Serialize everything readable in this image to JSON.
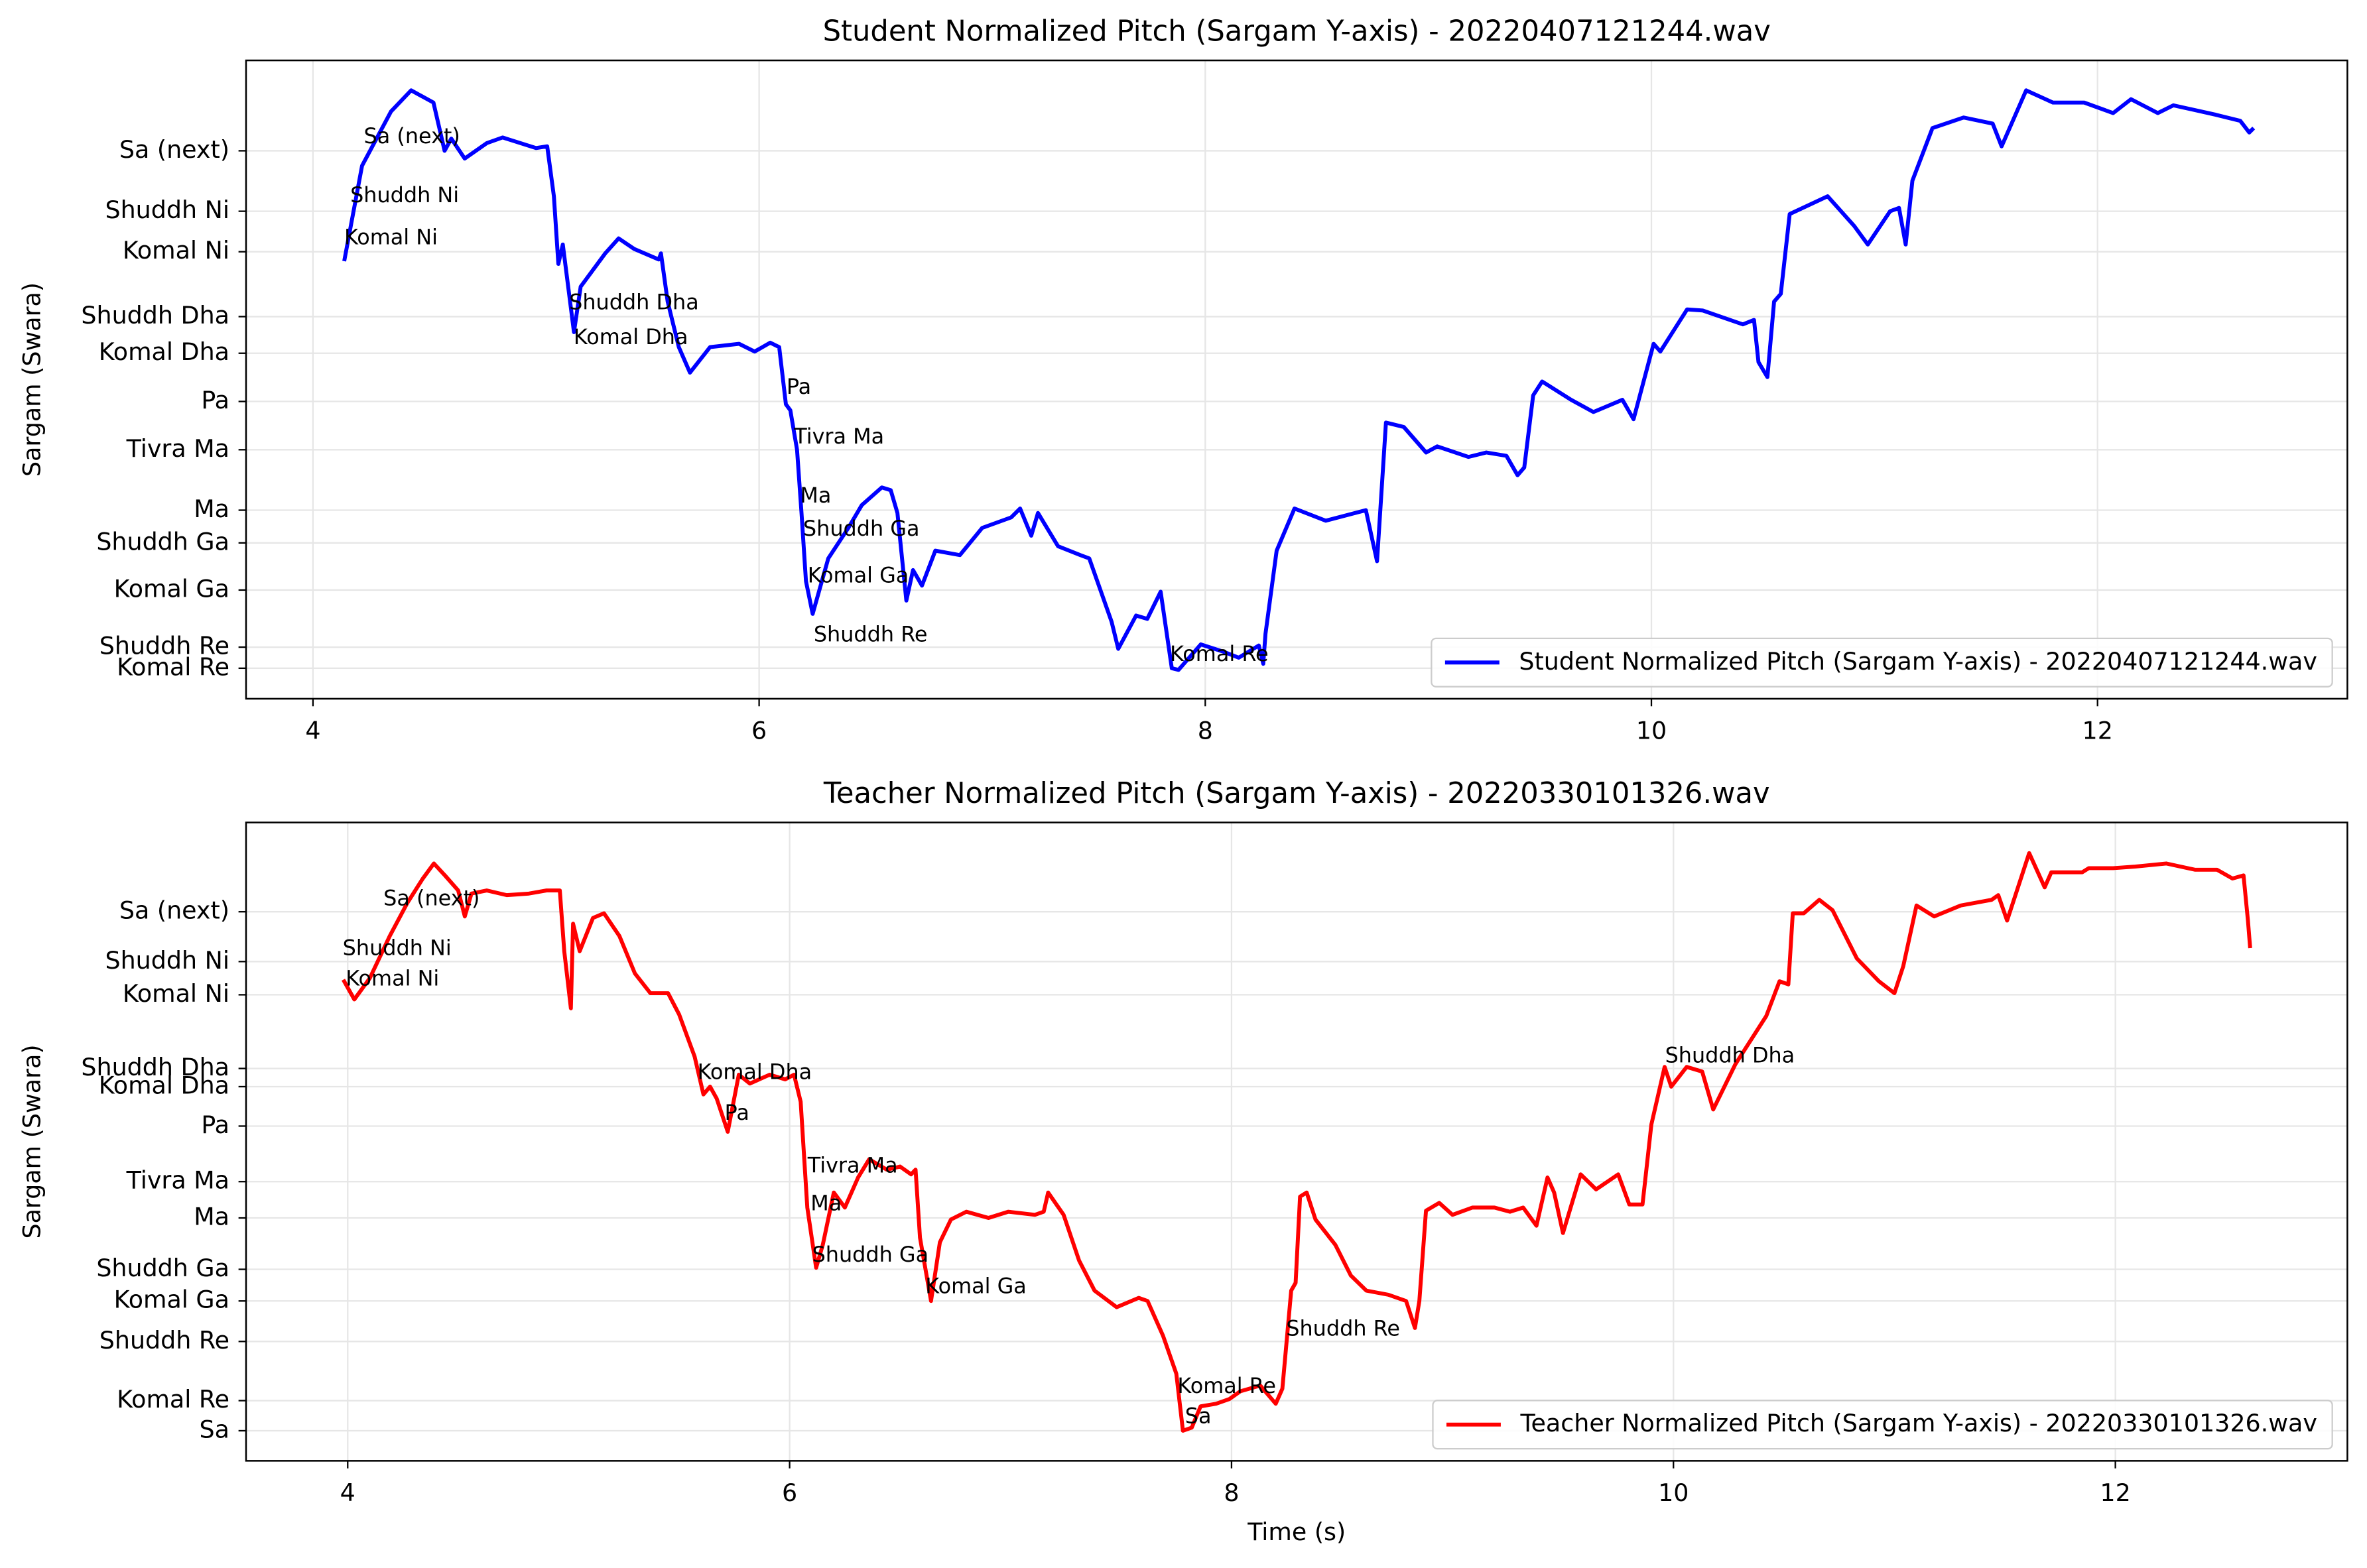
{
  "chart_data": [
    {
      "type": "line",
      "title": "Student Normalized Pitch (Sargam Y-axis) - 20220407121244.wav",
      "ylabel": "Sargam (Swara)",
      "xlim": [
        3.7,
        13.12
      ],
      "xticks": [
        4,
        6,
        8,
        10,
        12
      ],
      "ylim": [
        1.012,
        2.163
      ],
      "yticks": [
        {
          "value": 1.067,
          "label": "Komal Re"
        },
        {
          "value": 1.105,
          "label": "Shuddh Re"
        },
        {
          "value": 1.208,
          "label": "Komal Ga"
        },
        {
          "value": 1.293,
          "label": "Shuddh Ga"
        },
        {
          "value": 1.352,
          "label": "Ma"
        },
        {
          "value": 1.461,
          "label": "Tivra Ma"
        },
        {
          "value": 1.548,
          "label": "Pa"
        },
        {
          "value": 1.635,
          "label": "Komal Dha"
        },
        {
          "value": 1.701,
          "label": "Shuddh Dha"
        },
        {
          "value": 1.818,
          "label": "Komal Ni"
        },
        {
          "value": 1.891,
          "label": "Shuddh Ni"
        },
        {
          "value": 2.0,
          "label": "Sa (next)"
        }
      ],
      "grid": true,
      "legend": "lower right",
      "annotations": [
        "Sa (next)",
        "Shuddh Ni",
        "Komal Ni",
        "Shuddh Dha",
        "Komal Dha",
        "Pa",
        "Tivra Ma",
        "Ma",
        "Shuddh Ga",
        "Komal Ga",
        "Shuddh Re",
        "Komal Re"
      ],
      "x": [
        4.14,
        4.22,
        4.35,
        4.44,
        4.54,
        4.59,
        4.62,
        4.68,
        4.78,
        4.85,
        5.0,
        5.05,
        5.08,
        5.1,
        5.12,
        5.17,
        5.2,
        5.31,
        5.37,
        5.44,
        5.55,
        5.56,
        5.59,
        5.64,
        5.69,
        5.78,
        5.91,
        5.98,
        6.05,
        6.09,
        6.12,
        6.14,
        6.17,
        6.19,
        6.21,
        6.24,
        6.31,
        6.4,
        6.46,
        6.55,
        6.59,
        6.62,
        6.66,
        6.69,
        6.73,
        6.79,
        6.9,
        7.0,
        7.13,
        7.17,
        7.22,
        7.25,
        7.34,
        7.44,
        7.48,
        7.58,
        7.61,
        7.69,
        7.74,
        7.8,
        7.85,
        7.88,
        7.98,
        8.08,
        8.15,
        8.24,
        8.26,
        8.27,
        8.32,
        8.4,
        8.54,
        8.72,
        8.77,
        8.81,
        8.89,
        8.99,
        9.04,
        9.18,
        9.26,
        9.35,
        9.4,
        9.43,
        9.47,
        9.51,
        9.64,
        9.74,
        9.87,
        9.92,
        10.01,
        10.04,
        10.16,
        10.23,
        10.41,
        10.46,
        10.48,
        10.52,
        10.55,
        10.58,
        10.62,
        10.79,
        10.91,
        10.97,
        11.07,
        11.11,
        11.14,
        11.17,
        11.26,
        11.4,
        11.53,
        11.57,
        11.68,
        11.8,
        11.94,
        12.07,
        12.15,
        12.27,
        12.34,
        12.53,
        12.64,
        12.68,
        12.7
      ],
      "series": [
        {
          "name": "Student Normalized Pitch (Sargam Y-axis) - 20220407121244.wav",
          "color": "#0000ff",
          "values": [
            1.801,
            1.973,
            2.071,
            2.109,
            2.087,
            2.0,
            2.022,
            1.986,
            2.014,
            2.024,
            2.005,
            2.008,
            1.918,
            1.796,
            1.831,
            1.673,
            1.755,
            1.815,
            1.842,
            1.823,
            1.804,
            1.815,
            1.728,
            1.646,
            1.6,
            1.646,
            1.652,
            1.638,
            1.654,
            1.646,
            1.543,
            1.532,
            1.461,
            1.347,
            1.224,
            1.165,
            1.265,
            1.32,
            1.361,
            1.393,
            1.388,
            1.347,
            1.189,
            1.244,
            1.216,
            1.279,
            1.271,
            1.32,
            1.339,
            1.355,
            1.306,
            1.347,
            1.287,
            1.271,
            1.265,
            1.151,
            1.102,
            1.162,
            1.156,
            1.205,
            1.067,
            1.064,
            1.11,
            1.097,
            1.086,
            1.108,
            1.075,
            1.129,
            1.279,
            1.355,
            1.333,
            1.352,
            1.26,
            1.51,
            1.502,
            1.456,
            1.467,
            1.448,
            1.456,
            1.45,
            1.415,
            1.429,
            1.559,
            1.584,
            1.551,
            1.529,
            1.551,
            1.516,
            1.652,
            1.638,
            1.714,
            1.712,
            1.687,
            1.695,
            1.619,
            1.592,
            1.728,
            1.742,
            1.886,
            1.918,
            1.864,
            1.831,
            1.891,
            1.897,
            1.831,
            1.946,
            2.041,
            2.06,
            2.049,
            2.008,
            2.109,
            2.087,
            2.087,
            2.068,
            2.093,
            2.068,
            2.082,
            2.065,
            2.054,
            2.033,
            2.041
          ]
        }
      ]
    },
    {
      "type": "line",
      "title": "Teacher Normalized Pitch (Sargam Y-axis) - 20220330101326.wav",
      "ylabel": "Sargam (Swara)",
      "xlabel": "Time (s)",
      "xlim": [
        3.54,
        13.05
      ],
      "xticks": [
        4,
        6,
        8,
        10,
        12
      ],
      "ylim": [
        0.942,
        2.172
      ],
      "yticks": [
        {
          "value": 1.0,
          "label": "Sa"
        },
        {
          "value": 1.058,
          "label": "Komal Re"
        },
        {
          "value": 1.172,
          "label": "Shuddh Re"
        },
        {
          "value": 1.25,
          "label": "Komal Ga"
        },
        {
          "value": 1.311,
          "label": "Shuddh Ga"
        },
        {
          "value": 1.41,
          "label": "Ma"
        },
        {
          "value": 1.48,
          "label": "Tivra Ma"
        },
        {
          "value": 1.587,
          "label": "Pa"
        },
        {
          "value": 1.663,
          "label": "Komal Dha"
        },
        {
          "value": 1.698,
          "label": "Shuddh Dha"
        },
        {
          "value": 1.84,
          "label": "Komal Ni"
        },
        {
          "value": 1.904,
          "label": "Shuddh Ni"
        },
        {
          "value": 2.0,
          "label": "Sa (next)"
        }
      ],
      "grid": true,
      "legend": "lower right",
      "annotations": [
        "Sa (next)",
        "Shuddh Ni",
        "Komal Ni",
        "Komal Dha",
        "Pa",
        "Tivra Ma",
        "Ma",
        "Shuddh Ga",
        "Komal Ga",
        "Shuddh Re",
        "Komal Re",
        "Sa",
        "Shuddh Dha"
      ],
      "x": [
        3.98,
        4.03,
        4.1,
        4.19,
        4.27,
        4.34,
        4.39,
        4.44,
        4.5,
        4.53,
        4.56,
        4.63,
        4.72,
        4.82,
        4.9,
        4.96,
        4.98,
        5.01,
        5.02,
        5.05,
        5.11,
        5.16,
        5.23,
        5.3,
        5.37,
        5.45,
        5.5,
        5.57,
        5.61,
        5.64,
        5.67,
        5.72,
        5.77,
        5.82,
        5.91,
        5.98,
        6.02,
        6.05,
        6.08,
        6.12,
        6.15,
        6.2,
        6.25,
        6.31,
        6.36,
        6.44,
        6.5,
        6.55,
        6.57,
        6.59,
        6.64,
        6.68,
        6.73,
        6.8,
        6.9,
        6.99,
        7.11,
        7.15,
        7.17,
        7.24,
        7.31,
        7.38,
        7.48,
        7.58,
        7.62,
        7.69,
        7.75,
        7.78,
        7.82,
        7.86,
        7.93,
        7.99,
        8.04,
        8.13,
        8.2,
        8.23,
        8.27,
        8.29,
        8.31,
        8.34,
        8.38,
        8.47,
        8.54,
        8.61,
        8.71,
        8.79,
        8.83,
        8.85,
        8.88,
        8.94,
        9.0,
        9.09,
        9.19,
        9.26,
        9.32,
        9.38,
        9.43,
        9.46,
        9.5,
        9.58,
        9.65,
        9.75,
        9.8,
        9.86,
        9.9,
        9.96,
        9.99,
        10.06,
        10.13,
        10.18,
        10.28,
        10.42,
        10.48,
        10.52,
        10.54,
        10.59,
        10.66,
        10.72,
        10.83,
        10.93,
        11.0,
        11.04,
        11.1,
        11.18,
        11.3,
        11.44,
        11.47,
        11.51,
        11.61,
        11.68,
        11.71,
        11.85,
        11.88,
        11.99,
        12.09,
        12.23,
        12.36,
        12.46,
        12.53,
        12.58,
        12.6,
        12.61
      ],
      "series": [
        {
          "name": "Teacher Normalized Pitch (Sargam Y-axis) - 20220330101326.wav",
          "color": "#ff0000",
          "values": [
            1.869,
            1.831,
            1.872,
            1.953,
            2.017,
            2.064,
            2.093,
            2.07,
            2.041,
            1.991,
            2.035,
            2.041,
            2.032,
            2.035,
            2.041,
            2.041,
            1.924,
            1.814,
            1.977,
            1.924,
            1.988,
            1.997,
            1.953,
            1.881,
            1.843,
            1.843,
            1.802,
            1.721,
            1.648,
            1.663,
            1.64,
            1.576,
            1.686,
            1.669,
            1.686,
            1.677,
            1.686,
            1.634,
            1.43,
            1.314,
            1.358,
            1.459,
            1.43,
            1.488,
            1.523,
            1.503,
            1.509,
            1.494,
            1.503,
            1.372,
            1.25,
            1.363,
            1.407,
            1.422,
            1.41,
            1.422,
            1.416,
            1.422,
            1.459,
            1.416,
            1.328,
            1.27,
            1.238,
            1.256,
            1.25,
            1.183,
            1.11,
            1.0,
            1.006,
            1.047,
            1.052,
            1.061,
            1.076,
            1.087,
            1.052,
            1.081,
            1.27,
            1.285,
            1.451,
            1.459,
            1.407,
            1.358,
            1.299,
            1.27,
            1.262,
            1.25,
            1.198,
            1.25,
            1.424,
            1.439,
            1.416,
            1.43,
            1.43,
            1.422,
            1.43,
            1.395,
            1.488,
            1.459,
            1.381,
            1.494,
            1.465,
            1.494,
            1.436,
            1.436,
            1.59,
            1.701,
            1.663,
            1.701,
            1.692,
            1.619,
            1.706,
            1.799,
            1.866,
            1.86,
            1.997,
            1.997,
            2.023,
            2.003,
            1.91,
            1.866,
            1.843,
            1.895,
            2.012,
            1.991,
            2.012,
            2.023,
            2.032,
            1.983,
            2.113,
            2.047,
            2.076,
            2.076,
            2.084,
            2.084,
            2.087,
            2.093,
            2.081,
            2.081,
            2.064,
            2.07,
            1.983,
            1.93
          ]
        }
      ]
    }
  ]
}
